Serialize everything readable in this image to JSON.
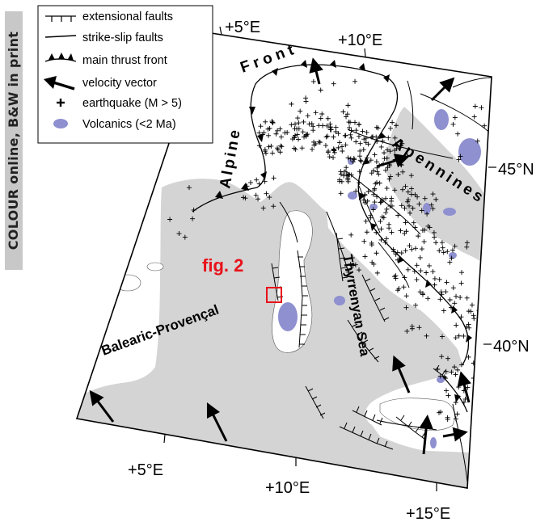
{
  "side_banner": "COLOUR online, B&W in print",
  "legend": {
    "items": [
      {
        "symbol": "extensional-fault",
        "label": "extensional faults"
      },
      {
        "symbol": "strike-slip-fault",
        "label": "strike-slip faults"
      },
      {
        "symbol": "thrust-front",
        "label": "main thrust front"
      },
      {
        "symbol": "velocity-vector",
        "label": "velocity vector"
      },
      {
        "symbol": "earthquake",
        "label": "earthquake (M > 5)"
      },
      {
        "symbol": "volcanics",
        "label": "Volcanics (<2 Ma)"
      }
    ]
  },
  "graticule": {
    "top": [
      "+5°E",
      "+10°E"
    ],
    "right": [
      "45°N",
      "40°N"
    ],
    "bottom": [
      "+5°E",
      "+10°E",
      "+15°E"
    ]
  },
  "place_labels": {
    "alpine": "Alpine",
    "front": "Front",
    "apennines": "Apennines",
    "balearic": "Balearic-Provençal",
    "thyrrenyan": "Thyrrenyan Sea"
  },
  "inset_label": "fig. 2",
  "colors": {
    "sea": "#d4d4d4",
    "land": "#ffffff",
    "volcanics": "#8e90cf",
    "inset": "#e8111a",
    "line": "#000000",
    "banner": "#c8c8c8"
  }
}
